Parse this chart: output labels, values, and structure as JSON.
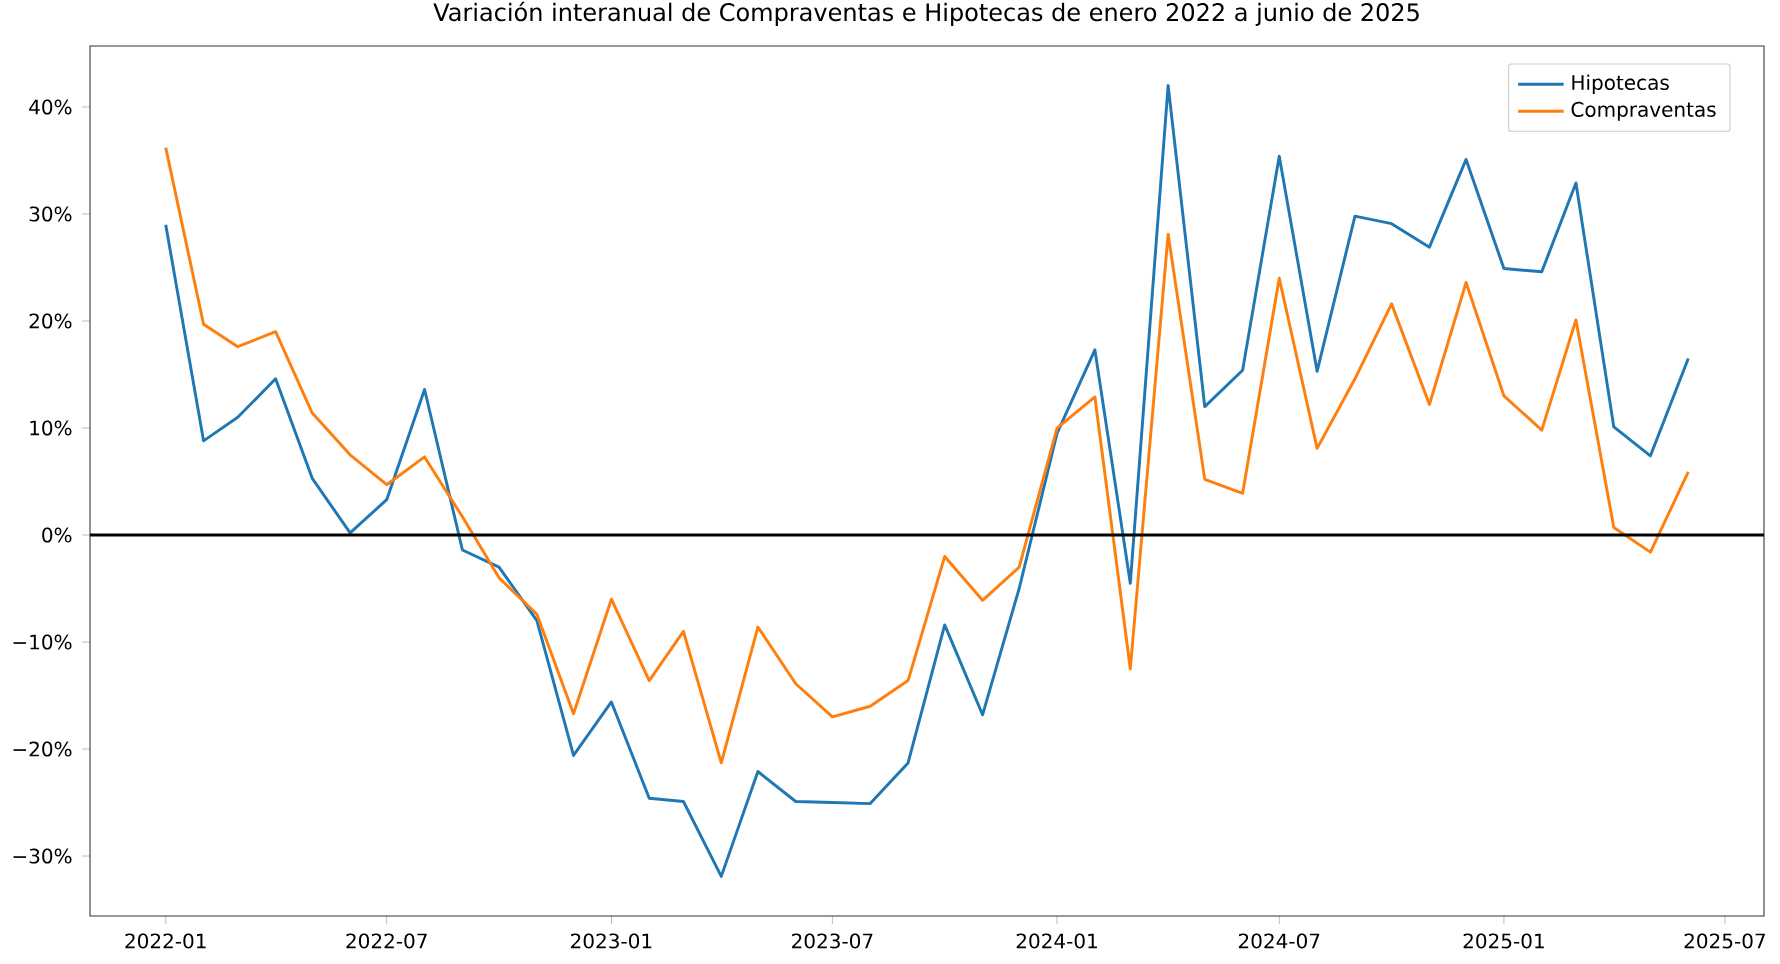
{
  "chart_data": {
    "type": "line",
    "title": "Variación interanual de Compraventas e Hipotecas de enero 2022 a junio de 2025",
    "x": [
      "2022-01",
      "2022-02",
      "2022-03",
      "2022-04",
      "2022-05",
      "2022-06",
      "2022-07",
      "2022-08",
      "2022-09",
      "2022-10",
      "2022-11",
      "2022-12",
      "2023-01",
      "2023-02",
      "2023-03",
      "2023-04",
      "2023-05",
      "2023-06",
      "2023-07",
      "2023-08",
      "2023-09",
      "2023-10",
      "2023-11",
      "2023-12",
      "2024-01",
      "2024-02",
      "2024-03",
      "2024-04",
      "2024-05",
      "2024-06",
      "2024-07",
      "2024-08",
      "2024-09",
      "2024-10",
      "2024-11",
      "2024-12",
      "2025-01",
      "2025-02",
      "2025-03",
      "2025-04",
      "2025-05",
      "2025-06"
    ],
    "series": [
      {
        "name": "Hipotecas",
        "color": "#1f77b4",
        "values": [
          29,
          8.8,
          11,
          14.6,
          5.3,
          0.2,
          3.3,
          13.6,
          -1.4,
          -3,
          -8,
          -20.6,
          -15.6,
          -24.6,
          -24.9,
          -31.9,
          -22.1,
          -24.9,
          -25,
          -25.1,
          -21.3,
          -8.4,
          -16.8,
          -5,
          9.5,
          17.3,
          -4.5,
          42,
          12,
          15.4,
          35.4,
          15.3,
          29.8,
          29.1,
          26.9,
          35.1,
          24.9,
          24.6,
          32.9,
          10.1,
          7.4,
          16.5
        ]
      },
      {
        "name": "Compraventas",
        "color": "#ff7f0e",
        "values": [
          36.2,
          19.7,
          17.6,
          19,
          11.4,
          7.5,
          4.7,
          7.3,
          1.7,
          -4,
          -7.4,
          -16.7,
          -6,
          -13.6,
          -9,
          -21.3,
          -8.6,
          -13.9,
          -17,
          -16,
          -13.6,
          -2,
          -6.1,
          -3,
          10,
          12.9,
          -12.5,
          28.1,
          5.2,
          3.9,
          24,
          8.1,
          14.6,
          21.6,
          12.2,
          23.6,
          13,
          9.8,
          20.1,
          0.7,
          -1.6,
          5.9
        ]
      }
    ],
    "xlim": [
      "2021-10-31",
      "2025-08-02"
    ],
    "xticks": [
      "2022-01",
      "2022-07",
      "2023-01",
      "2023-07",
      "2024-01",
      "2024-07",
      "2025-01",
      "2025-07"
    ],
    "ylim": [
      -35.6,
      45.7
    ],
    "yticks": [
      {
        "value": -30,
        "label": "−30%"
      },
      {
        "value": -20,
        "label": "−20%"
      },
      {
        "value": -10,
        "label": "−10%"
      },
      {
        "value": 0,
        "label": "0%"
      },
      {
        "value": 10,
        "label": "10%"
      },
      {
        "value": 20,
        "label": "20%"
      },
      {
        "value": 30,
        "label": "30%"
      },
      {
        "value": 40,
        "label": "40%"
      }
    ],
    "ref_lines": [
      {
        "axis": "y",
        "value": 0,
        "color": "#000000"
      }
    ],
    "legend": "top right",
    "grid": false,
    "marker": "none",
    "line_style": "solid"
  }
}
